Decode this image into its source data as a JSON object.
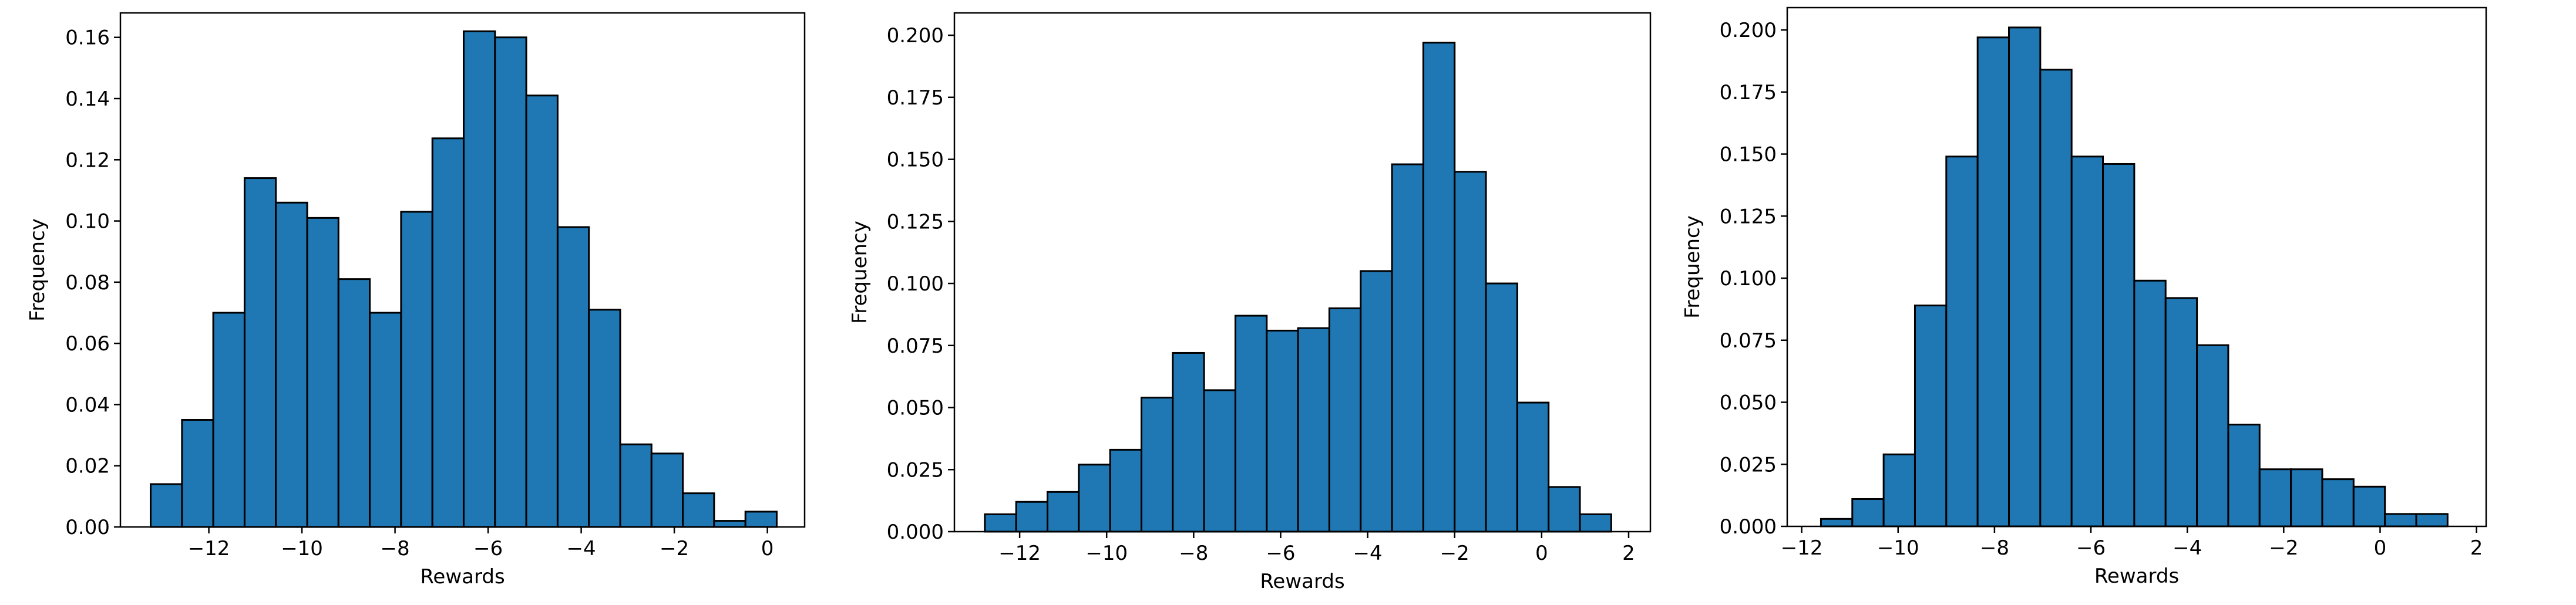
{
  "figure": {
    "background": "#ffffff",
    "bar_color": "#1f77b4",
    "edge_color": "#000000"
  },
  "chart_data": [
    {
      "type": "bar",
      "title": "",
      "xlabel": "Rewards",
      "ylabel": "Frequency",
      "xlim": [
        -13.9,
        0.8
      ],
      "ylim": [
        0,
        0.168
      ],
      "xticks": [
        -12,
        -10,
        -8,
        -6,
        -4,
        -2,
        0
      ],
      "xtick_labels": [
        "−12",
        "−10",
        "−8",
        "−6",
        "−4",
        "−2",
        "0"
      ],
      "yticks": [
        0,
        0.02,
        0.04,
        0.06,
        0.08,
        0.1,
        0.12,
        0.14,
        0.16
      ],
      "ytick_labels": [
        "0.00",
        "0.02",
        "0.04",
        "0.06",
        "0.08",
        "0.10",
        "0.12",
        "0.14",
        "0.16"
      ],
      "bin_edges": [
        -13.25,
        -12.577,
        -11.905,
        -11.232,
        -10.56,
        -9.887,
        -9.215,
        -8.542,
        -7.87,
        -7.197,
        -6.525,
        -5.852,
        -5.18,
        -4.507,
        -3.835,
        -3.162,
        -2.49,
        -1.817,
        -1.145,
        -0.472,
        0.2
      ],
      "values": [
        0.014,
        0.035,
        0.07,
        0.114,
        0.106,
        0.101,
        0.081,
        0.07,
        0.103,
        0.127,
        0.162,
        0.16,
        0.141,
        0.098,
        0.071,
        0.027,
        0.024,
        0.011,
        0.002,
        0.005
      ]
    },
    {
      "type": "bar",
      "title": "",
      "xlabel": "Rewards",
      "ylabel": "Frequency",
      "xlim": [
        -13.5,
        2.5
      ],
      "ylim": [
        0,
        0.209
      ],
      "xticks": [
        -12,
        -10,
        -8,
        -6,
        -4,
        -2,
        0,
        2
      ],
      "xtick_labels": [
        "−12",
        "−10",
        "−8",
        "−6",
        "−4",
        "−2",
        "0",
        "2"
      ],
      "yticks": [
        0,
        0.025,
        0.05,
        0.075,
        0.1,
        0.125,
        0.15,
        0.175,
        0.2
      ],
      "ytick_labels": [
        "0.000",
        "0.025",
        "0.050",
        "0.075",
        "0.100",
        "0.125",
        "0.150",
        "0.175",
        "0.200"
      ],
      "bin_edges": [
        -12.8,
        -12.08,
        -11.36,
        -10.64,
        -9.92,
        -9.2,
        -8.48,
        -7.76,
        -7.04,
        -6.32,
        -5.6,
        -4.88,
        -4.16,
        -3.44,
        -2.72,
        -2.0,
        -1.28,
        -0.56,
        0.16,
        0.88,
        1.6
      ],
      "values": [
        0.007,
        0.012,
        0.016,
        0.027,
        0.033,
        0.054,
        0.072,
        0.057,
        0.087,
        0.081,
        0.082,
        0.09,
        0.105,
        0.148,
        0.197,
        0.145,
        0.1,
        0.052,
        0.018,
        0.007
      ]
    },
    {
      "type": "bar",
      "title": "",
      "xlabel": "Rewards",
      "ylabel": "Frequency",
      "xlim": [
        -12.3,
        2.2
      ],
      "ylim": [
        0,
        0.209
      ],
      "xticks": [
        -12,
        -10,
        -8,
        -6,
        -4,
        -2,
        0,
        2
      ],
      "xtick_labels": [
        "−12",
        "−10",
        "−8",
        "−6",
        "−4",
        "−2",
        "0",
        "2"
      ],
      "yticks": [
        0,
        0.025,
        0.05,
        0.075,
        0.1,
        0.125,
        0.15,
        0.175,
        0.2
      ],
      "ytick_labels": [
        "0.000",
        "0.025",
        "0.050",
        "0.075",
        "0.100",
        "0.125",
        "0.150",
        "0.175",
        "0.200"
      ],
      "bin_edges": [
        -11.6,
        -10.95,
        -10.3,
        -9.65,
        -9.0,
        -8.35,
        -7.7,
        -7.05,
        -6.4,
        -5.75,
        -5.1,
        -4.45,
        -3.8,
        -3.15,
        -2.5,
        -1.85,
        -1.2,
        -0.55,
        0.1,
        0.75,
        1.4
      ],
      "values": [
        0.003,
        0.011,
        0.029,
        0.089,
        0.149,
        0.197,
        0.201,
        0.184,
        0.149,
        0.146,
        0.099,
        0.092,
        0.073,
        0.041,
        0.023,
        0.023,
        0.019,
        0.016,
        0.005,
        0.005
      ]
    }
  ]
}
